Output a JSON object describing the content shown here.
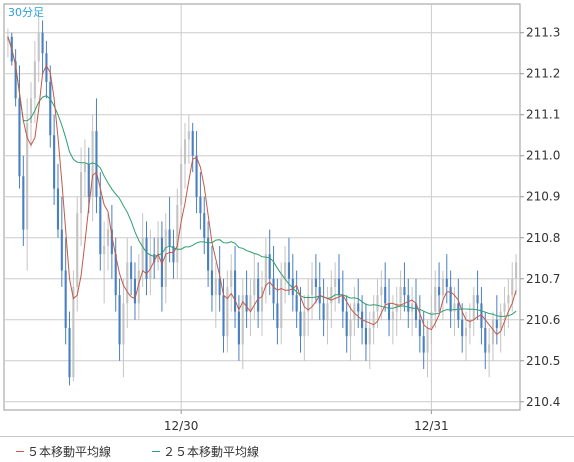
{
  "chart_data": {
    "type": "candlestick",
    "timeframe_label": "30分足",
    "y_ticks": [
      211.3,
      211.2,
      211.1,
      211.0,
      210.9,
      210.8,
      210.7,
      210.6,
      210.5,
      210.4
    ],
    "ylim": [
      210.38,
      211.37
    ],
    "x_ticks": [
      {
        "label": "12/30",
        "index": 45
      },
      {
        "label": "12/31",
        "index": 110
      }
    ],
    "colors": {
      "bull": "#c4c4c4",
      "bear": "#4a7fc1",
      "ma5": "#c45a47",
      "ma25": "#2e9e6f",
      "grid": "#cccccc",
      "axis": "#999999",
      "label_accent": "#2a9fd8"
    },
    "candles": [
      [
        211.28,
        211.31,
        211.24,
        211.29
      ],
      [
        211.29,
        211.3,
        211.22,
        211.23
      ],
      [
        211.23,
        211.26,
        211.12,
        211.14
      ],
      [
        211.14,
        211.22,
        210.92,
        210.95
      ],
      [
        210.95,
        211.0,
        210.78,
        210.82
      ],
      [
        210.82,
        211.14,
        210.72,
        211.08
      ],
      [
        211.08,
        211.18,
        211.02,
        211.14
      ],
      [
        211.14,
        211.28,
        211.08,
        211.23
      ],
      [
        211.23,
        211.34,
        211.18,
        211.3
      ],
      [
        211.3,
        211.33,
        211.2,
        211.25
      ],
      [
        211.25,
        211.28,
        211.14,
        211.18
      ],
      [
        211.18,
        211.22,
        211.02,
        211.05
      ],
      [
        211.05,
        211.1,
        210.88,
        210.92
      ],
      [
        210.92,
        210.98,
        210.8,
        210.82
      ],
      [
        210.82,
        210.9,
        210.68,
        210.72
      ],
      [
        210.72,
        210.8,
        210.54,
        210.58
      ],
      [
        210.58,
        210.62,
        210.44,
        210.46
      ],
      [
        210.46,
        210.72,
        210.45,
        210.68
      ],
      [
        210.68,
        210.9,
        210.62,
        210.86
      ],
      [
        210.86,
        211.02,
        210.78,
        210.96
      ],
      [
        210.96,
        211.04,
        210.9,
        210.98
      ],
      [
        210.98,
        211.02,
        210.86,
        210.9
      ],
      [
        210.9,
        211.1,
        210.84,
        211.06
      ],
      [
        211.06,
        211.14,
        210.86,
        210.9
      ],
      [
        210.9,
        210.96,
        210.72,
        210.76
      ],
      [
        210.76,
        210.84,
        210.64,
        210.78
      ],
      [
        210.78,
        210.86,
        210.72,
        210.82
      ],
      [
        210.82,
        210.88,
        210.7,
        210.76
      ],
      [
        210.76,
        210.8,
        210.62,
        210.66
      ],
      [
        210.66,
        210.7,
        210.5,
        210.54
      ],
      [
        210.54,
        210.7,
        210.46,
        210.64
      ],
      [
        210.64,
        210.8,
        210.58,
        210.74
      ],
      [
        210.74,
        210.78,
        210.66,
        210.7
      ],
      [
        210.7,
        210.74,
        210.6,
        210.64
      ],
      [
        210.64,
        210.76,
        210.6,
        210.72
      ],
      [
        210.72,
        210.86,
        210.68,
        210.8
      ],
      [
        210.8,
        210.84,
        210.66,
        210.7
      ],
      [
        210.7,
        210.82,
        210.66,
        210.76
      ],
      [
        210.76,
        210.8,
        210.7,
        210.74
      ],
      [
        210.74,
        210.84,
        210.72,
        210.8
      ],
      [
        210.8,
        210.84,
        210.62,
        210.68
      ],
      [
        210.68,
        210.86,
        210.64,
        210.82
      ],
      [
        210.82,
        210.9,
        210.74,
        210.78
      ],
      [
        210.78,
        210.82,
        210.7,
        210.74
      ],
      [
        210.74,
        210.92,
        210.7,
        210.88
      ],
      [
        210.88,
        211.02,
        210.84,
        210.98
      ],
      [
        210.98,
        211.08,
        210.92,
        211.04
      ],
      [
        211.04,
        211.1,
        210.98,
        211.06
      ],
      [
        211.06,
        211.08,
        210.96,
        211.0
      ],
      [
        211.0,
        211.06,
        210.86,
        210.9
      ],
      [
        210.9,
        210.96,
        210.82,
        210.86
      ],
      [
        210.86,
        210.9,
        210.76,
        210.8
      ],
      [
        210.8,
        210.84,
        210.68,
        210.72
      ],
      [
        210.72,
        210.78,
        210.62,
        210.66
      ],
      [
        210.66,
        210.74,
        210.58,
        210.7
      ],
      [
        210.7,
        210.78,
        210.62,
        210.66
      ],
      [
        210.66,
        210.7,
        210.52,
        210.56
      ],
      [
        210.56,
        210.72,
        210.52,
        210.68
      ],
      [
        210.68,
        210.76,
        210.62,
        210.72
      ],
      [
        210.72,
        210.78,
        210.58,
        210.62
      ],
      [
        210.62,
        210.66,
        210.5,
        210.54
      ],
      [
        210.54,
        210.7,
        210.48,
        210.66
      ],
      [
        210.66,
        210.72,
        210.58,
        210.62
      ],
      [
        210.62,
        210.7,
        210.56,
        210.66
      ],
      [
        210.66,
        210.76,
        210.6,
        210.7
      ],
      [
        210.7,
        210.74,
        210.58,
        210.62
      ],
      [
        210.62,
        210.72,
        210.56,
        210.68
      ],
      [
        210.68,
        210.8,
        210.64,
        210.76
      ],
      [
        210.76,
        210.82,
        210.66,
        210.7
      ],
      [
        210.7,
        210.78,
        210.6,
        210.64
      ],
      [
        210.64,
        210.7,
        210.54,
        210.58
      ],
      [
        210.58,
        210.74,
        210.54,
        210.7
      ],
      [
        210.7,
        210.78,
        210.64,
        210.74
      ],
      [
        210.74,
        210.8,
        210.66,
        210.7
      ],
      [
        210.7,
        210.76,
        210.62,
        210.66
      ],
      [
        210.66,
        210.72,
        210.58,
        210.62
      ],
      [
        210.62,
        210.68,
        210.52,
        210.56
      ],
      [
        210.56,
        210.66,
        210.5,
        210.62
      ],
      [
        210.62,
        210.7,
        210.56,
        210.66
      ],
      [
        210.66,
        210.74,
        210.6,
        210.7
      ],
      [
        210.7,
        210.76,
        210.64,
        210.68
      ],
      [
        210.68,
        210.74,
        210.6,
        210.64
      ],
      [
        210.64,
        210.7,
        210.56,
        210.6
      ],
      [
        210.6,
        210.68,
        210.54,
        210.64
      ],
      [
        210.64,
        210.72,
        210.58,
        210.68
      ],
      [
        210.68,
        210.74,
        210.62,
        210.7
      ],
      [
        210.7,
        210.76,
        210.64,
        210.66
      ],
      [
        210.66,
        210.72,
        210.58,
        210.62
      ],
      [
        210.62,
        210.66,
        210.52,
        210.56
      ],
      [
        210.56,
        210.64,
        210.5,
        210.6
      ],
      [
        210.6,
        210.68,
        210.56,
        210.64
      ],
      [
        210.64,
        210.7,
        210.58,
        210.62
      ],
      [
        210.62,
        210.66,
        210.54,
        210.58
      ],
      [
        210.58,
        210.64,
        210.5,
        210.54
      ],
      [
        210.54,
        210.62,
        210.48,
        210.58
      ],
      [
        210.58,
        210.66,
        210.54,
        210.62
      ],
      [
        210.62,
        210.7,
        210.58,
        210.66
      ],
      [
        210.66,
        210.72,
        210.6,
        210.68
      ],
      [
        210.68,
        210.74,
        210.62,
        210.64
      ],
      [
        210.64,
        210.7,
        210.56,
        210.6
      ],
      [
        210.6,
        210.66,
        210.54,
        210.62
      ],
      [
        210.62,
        210.68,
        210.56,
        210.64
      ],
      [
        210.64,
        210.72,
        210.6,
        210.68
      ],
      [
        210.68,
        210.74,
        210.62,
        210.66
      ],
      [
        210.66,
        210.7,
        210.58,
        210.62
      ],
      [
        210.62,
        210.68,
        210.56,
        210.64
      ],
      [
        210.64,
        210.7,
        210.58,
        210.6
      ],
      [
        210.6,
        210.66,
        210.52,
        210.56
      ],
      [
        210.56,
        210.62,
        210.48,
        210.52
      ],
      [
        210.52,
        210.6,
        210.46,
        210.58
      ],
      [
        210.58,
        210.66,
        210.54,
        210.62
      ],
      [
        210.62,
        210.72,
        210.58,
        210.68
      ],
      [
        210.68,
        210.74,
        210.62,
        210.66
      ],
      [
        210.66,
        210.72,
        210.6,
        210.7
      ],
      [
        210.7,
        210.76,
        210.64,
        210.68
      ],
      [
        210.68,
        210.72,
        210.58,
        210.62
      ],
      [
        210.62,
        210.68,
        210.56,
        210.64
      ],
      [
        210.64,
        210.7,
        210.58,
        210.6
      ],
      [
        210.6,
        210.64,
        210.52,
        210.56
      ],
      [
        210.56,
        210.62,
        210.5,
        210.58
      ],
      [
        210.58,
        210.64,
        210.54,
        210.6
      ],
      [
        210.6,
        210.68,
        210.56,
        210.66
      ],
      [
        210.66,
        210.72,
        210.6,
        210.64
      ],
      [
        210.64,
        210.68,
        210.54,
        210.58
      ],
      [
        210.58,
        210.62,
        210.48,
        210.52
      ],
      [
        210.52,
        210.58,
        210.46,
        210.54
      ],
      [
        210.54,
        210.62,
        210.5,
        210.6
      ],
      [
        210.6,
        210.66,
        210.54,
        210.58
      ],
      [
        210.58,
        210.64,
        210.52,
        210.62
      ],
      [
        210.62,
        210.68,
        210.56,
        210.64
      ],
      [
        210.64,
        210.7,
        210.58,
        210.66
      ],
      [
        210.66,
        210.74,
        210.62,
        210.7
      ],
      [
        210.7,
        210.76,
        210.66,
        210.74
      ]
    ]
  },
  "legend": {
    "ma5_label": "５本移動平均線",
    "ma25_label": "２５本移動平均線"
  }
}
